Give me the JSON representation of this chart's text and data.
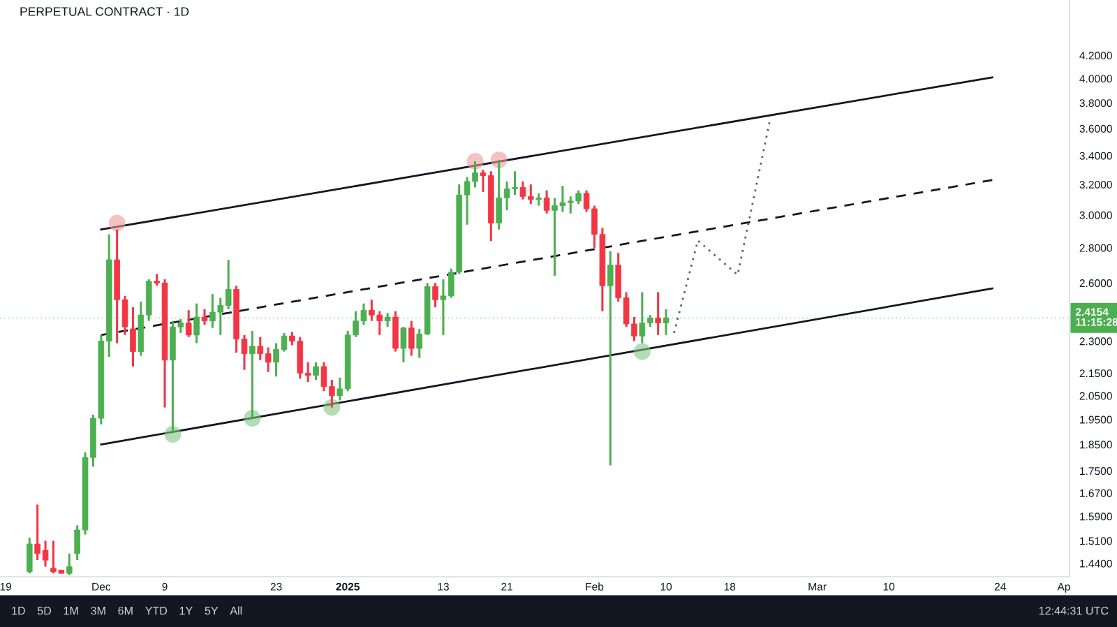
{
  "chart_data": {
    "type": "candlestick",
    "title": "PERPETUAL CONTRACT · 1D",
    "log": true,
    "x": [
      "2024-11-22",
      "2024-11-23",
      "2024-11-24",
      "2024-11-25",
      "2024-11-26",
      "2024-11-27",
      "2024-11-28",
      "2024-11-29",
      "2024-11-30",
      "2024-12-01",
      "2024-12-02",
      "2024-12-03",
      "2024-12-04",
      "2024-12-05",
      "2024-12-06",
      "2024-12-07",
      "2024-12-08",
      "2024-12-09",
      "2024-12-10",
      "2024-12-11",
      "2024-12-12",
      "2024-12-13",
      "2024-12-14",
      "2024-12-15",
      "2024-12-16",
      "2024-12-17",
      "2024-12-18",
      "2024-12-19",
      "2024-12-20",
      "2024-12-21",
      "2024-12-22",
      "2024-12-23",
      "2024-12-24",
      "2024-12-25",
      "2024-12-26",
      "2024-12-27",
      "2024-12-28",
      "2024-12-29",
      "2024-12-30",
      "2024-12-31",
      "2025-01-01",
      "2025-01-02",
      "2025-01-03",
      "2025-01-04",
      "2025-01-05",
      "2025-01-06",
      "2025-01-07",
      "2025-01-08",
      "2025-01-09",
      "2025-01-10",
      "2025-01-11",
      "2025-01-12",
      "2025-01-13",
      "2025-01-14",
      "2025-01-15",
      "2025-01-16",
      "2025-01-17",
      "2025-01-18",
      "2025-01-19",
      "2025-01-20",
      "2025-01-21",
      "2025-01-22",
      "2025-01-23",
      "2025-01-24",
      "2025-01-25",
      "2025-01-26",
      "2025-01-27",
      "2025-01-28",
      "2025-01-29",
      "2025-01-30",
      "2025-01-31",
      "2025-02-01",
      "2025-02-02",
      "2025-02-03",
      "2025-02-04",
      "2025-02-05",
      "2025-02-06",
      "2025-02-07",
      "2025-02-08",
      "2025-02-09",
      "2025-02-10"
    ],
    "ohlc": [
      [
        1.415,
        1.52,
        1.41,
        1.5
      ],
      [
        1.5,
        1.63,
        1.45,
        1.47
      ],
      [
        1.48,
        1.51,
        1.43,
        1.45
      ],
      [
        1.425,
        1.51,
        1.41,
        1.415
      ],
      [
        1.42,
        1.42,
        1.41,
        1.41
      ],
      [
        1.41,
        1.47,
        1.405,
        1.43
      ],
      [
        1.47,
        1.56,
        1.45,
        1.545
      ],
      [
        1.545,
        1.82,
        1.53,
        1.8
      ],
      [
        1.8,
        1.97,
        1.765,
        1.955
      ],
      [
        1.955,
        2.33,
        1.93,
        2.3
      ],
      [
        2.3,
        2.88,
        2.225,
        2.73
      ],
      [
        2.73,
        2.91,
        2.29,
        2.51
      ],
      [
        2.51,
        2.53,
        2.33,
        2.37
      ],
      [
        2.36,
        2.47,
        2.18,
        2.25
      ],
      [
        2.25,
        2.5,
        2.23,
        2.43
      ],
      [
        2.43,
        2.62,
        2.4,
        2.61
      ],
      [
        2.61,
        2.65,
        2.585,
        2.6
      ],
      [
        2.6,
        2.62,
        2.0,
        2.21
      ],
      [
        2.21,
        2.4,
        1.9,
        2.37
      ],
      [
        2.37,
        2.41,
        2.34,
        2.39
      ],
      [
        2.39,
        2.455,
        2.32,
        2.33
      ],
      [
        2.33,
        2.49,
        2.29,
        2.42
      ],
      [
        2.42,
        2.46,
        2.38,
        2.4
      ],
      [
        2.4,
        2.54,
        2.365,
        2.445
      ],
      [
        2.445,
        2.52,
        2.33,
        2.48
      ],
      [
        2.48,
        2.73,
        2.46,
        2.565
      ],
      [
        2.565,
        2.585,
        2.245,
        2.31
      ],
      [
        2.31,
        2.33,
        2.165,
        2.24
      ],
      [
        2.24,
        2.35,
        1.955,
        2.275
      ],
      [
        2.275,
        2.32,
        2.21,
        2.24
      ],
      [
        2.24,
        2.27,
        2.155,
        2.2
      ],
      [
        2.2,
        2.29,
        2.135,
        2.26
      ],
      [
        2.26,
        2.34,
        2.25,
        2.325
      ],
      [
        2.325,
        2.345,
        2.28,
        2.3
      ],
      [
        2.3,
        2.32,
        2.125,
        2.15
      ],
      [
        2.15,
        2.2,
        2.11,
        2.14
      ],
      [
        2.14,
        2.2,
        2.12,
        2.18
      ],
      [
        2.18,
        2.2,
        2.07,
        2.09
      ],
      [
        2.09,
        2.12,
        2.0,
        2.05
      ],
      [
        2.05,
        2.13,
        2.03,
        2.08
      ],
      [
        2.08,
        2.35,
        2.07,
        2.33
      ],
      [
        2.33,
        2.45,
        2.32,
        2.4
      ],
      [
        2.4,
        2.49,
        2.38,
        2.455
      ],
      [
        2.455,
        2.51,
        2.4,
        2.43
      ],
      [
        2.43,
        2.45,
        2.33,
        2.4
      ],
      [
        2.4,
        2.44,
        2.37,
        2.42
      ],
      [
        2.42,
        2.45,
        2.25,
        2.265
      ],
      [
        2.265,
        2.37,
        2.2,
        2.365
      ],
      [
        2.365,
        2.4,
        2.23,
        2.265
      ],
      [
        2.265,
        2.36,
        2.22,
        2.335
      ],
      [
        2.335,
        2.6,
        2.33,
        2.58
      ],
      [
        2.58,
        2.6,
        2.47,
        2.51
      ],
      [
        2.51,
        2.62,
        2.33,
        2.53
      ],
      [
        2.53,
        2.68,
        2.52,
        2.66
      ],
      [
        2.66,
        3.2,
        2.65,
        3.13
      ],
      [
        3.13,
        3.25,
        2.94,
        3.22
      ],
      [
        3.22,
        3.36,
        3.18,
        3.28
      ],
      [
        3.28,
        3.3,
        3.15,
        3.26
      ],
      [
        3.26,
        3.29,
        2.84,
        2.95
      ],
      [
        2.95,
        3.37,
        2.91,
        3.11
      ],
      [
        3.11,
        3.22,
        3.03,
        3.17
      ],
      [
        3.17,
        3.29,
        3.13,
        3.18
      ],
      [
        3.18,
        3.22,
        3.1,
        3.12
      ],
      [
        3.12,
        3.2,
        3.07,
        3.1
      ],
      [
        3.1,
        3.14,
        3.06,
        3.11
      ],
      [
        3.11,
        3.16,
        3.01,
        3.03
      ],
      [
        3.03,
        3.11,
        2.64,
        3.06
      ],
      [
        3.06,
        3.19,
        3.02,
        3.08
      ],
      [
        3.08,
        3.12,
        3.01,
        3.09
      ],
      [
        3.09,
        3.16,
        3.07,
        3.14
      ],
      [
        3.14,
        3.16,
        3.02,
        3.04
      ],
      [
        3.04,
        3.06,
        2.8,
        2.88
      ],
      [
        2.88,
        2.92,
        2.45,
        2.585
      ],
      [
        2.585,
        2.78,
        1.77,
        2.7
      ],
      [
        2.7,
        2.77,
        2.5,
        2.52
      ],
      [
        2.52,
        2.55,
        2.37,
        2.385
      ],
      [
        2.385,
        2.42,
        2.3,
        2.325
      ],
      [
        2.325,
        2.55,
        2.29,
        2.39
      ],
      [
        2.39,
        2.43,
        2.37,
        2.415
      ],
      [
        2.415,
        2.55,
        2.33,
        2.39
      ],
      [
        2.39,
        2.46,
        2.33,
        2.4154
      ]
    ],
    "colors": [
      "#4caf50",
      "#f23645",
      "#f23645",
      "#f23645",
      "#f23645",
      "#4caf50",
      "#4caf50",
      "#4caf50",
      "#4caf50",
      "#4caf50",
      "#4caf50",
      "#f23645",
      "#f23645",
      "#f23645",
      "#4caf50",
      "#4caf50",
      "#f23645",
      "#f23645",
      "#4caf50",
      "#4caf50",
      "#f23645",
      "#4caf50",
      "#f23645",
      "#4caf50",
      "#4caf50",
      "#4caf50",
      "#f23645",
      "#f23645",
      "#4caf50",
      "#f23645",
      "#f23645",
      "#4caf50",
      "#4caf50",
      "#f23645",
      "#f23645",
      "#f23645",
      "#4caf50",
      "#f23645",
      "#f23645",
      "#4caf50",
      "#4caf50",
      "#4caf50",
      "#4caf50",
      "#f23645",
      "#f23645",
      "#4caf50",
      "#f23645",
      "#4caf50",
      "#f23645",
      "#4caf50",
      "#4caf50",
      "#f23645",
      "#4caf50",
      "#4caf50",
      "#4caf50",
      "#4caf50",
      "#4caf50",
      "#f23645",
      "#f23645",
      "#4caf50",
      "#4caf50",
      "#4caf50",
      "#f23645",
      "#f23645",
      "#4caf50",
      "#f23645",
      "#4caf50",
      "#4caf50",
      "#4caf50",
      "#4caf50",
      "#f23645",
      "#f23645",
      "#f23645",
      "#4caf50",
      "#f23645",
      "#f23645",
      "#f23645",
      "#4caf50",
      "#4caf50",
      "#f23645",
      "#4caf50"
    ],
    "series": [
      {
        "type": "line",
        "color": "#131722",
        "line_style": "solid",
        "x": [
          "2024-12-01",
          "2025-03-23"
        ],
        "values": [
          2.91,
          4.01
        ]
      },
      {
        "type": "line",
        "color": "#131722",
        "line_style": "dashed",
        "x": [
          "2024-12-01",
          "2025-03-23"
        ],
        "values": [
          2.33,
          3.23
        ]
      },
      {
        "type": "line",
        "color": "#131722",
        "line_style": "solid",
        "x": [
          "2024-12-01",
          "2025-03-23"
        ],
        "values": [
          1.85,
          2.57
        ]
      },
      {
        "type": "line",
        "color": "#5d606b",
        "line_style": "dotted",
        "x": [
          "2025-02-11",
          "2025-02-14",
          "2025-02-19",
          "2025-02-23"
        ],
        "values": [
          2.34,
          2.843,
          2.645,
          3.647
        ]
      },
      {
        "type": "scatter",
        "color": "#ef9a9a",
        "marker": "circle",
        "x": [
          "2024-12-03",
          "2025-01-17",
          "2025-01-20"
        ],
        "values": [
          2.95,
          3.36,
          3.37
        ]
      },
      {
        "type": "scatter",
        "color": "#81c784",
        "marker": "circle",
        "x": [
          "2024-12-10",
          "2024-12-20",
          "2024-12-30",
          "2025-02-07"
        ],
        "values": [
          1.89,
          1.955,
          2.0,
          2.25
        ]
      }
    ],
    "ref_lines": [
      {
        "axis": "y",
        "value": 2.4154,
        "label": "2.4154\n11:15:28",
        "color": "#4caf50",
        "line_style": "dotted"
      }
    ],
    "xlim": [
      "2024-11-18T07:00",
      "2025-04-01T17:00"
    ],
    "xticks": [
      {
        "value": "2024-11-19",
        "label": "19"
      },
      {
        "value": "2024-12-01",
        "label": "Dec"
      },
      {
        "value": "2024-12-09",
        "label": "9"
      },
      {
        "value": "2024-12-23",
        "label": "23"
      },
      {
        "value": "2025-01-01",
        "label": "2025"
      },
      {
        "value": "2025-01-13",
        "label": "13"
      },
      {
        "value": "2025-01-21",
        "label": "21"
      },
      {
        "value": "2025-02-01",
        "label": "Feb"
      },
      {
        "value": "2025-02-10",
        "label": "10"
      },
      {
        "value": "2025-02-18",
        "label": "18"
      },
      {
        "value": "2025-03-01",
        "label": "Mar"
      },
      {
        "value": "2025-03-10",
        "label": "10"
      },
      {
        "value": "2025-03-24",
        "label": "24"
      },
      {
        "value": "2025-04-01",
        "label": "Ap"
      }
    ],
    "ylim": [
      1.4,
      4.72
    ],
    "yticks": [
      {
        "value": 4.2,
        "label": "4.2000"
      },
      {
        "value": 4.0,
        "label": "4.0000"
      },
      {
        "value": 3.8,
        "label": "3.8000"
      },
      {
        "value": 3.6,
        "label": "3.6000"
      },
      {
        "value": 3.4,
        "label": "3.4000"
      },
      {
        "value": 3.2,
        "label": "3.2000"
      },
      {
        "value": 3.0,
        "label": "3.0000"
      },
      {
        "value": 2.8,
        "label": "2.8000"
      },
      {
        "value": 2.6,
        "label": "2.6000"
      },
      {
        "value": 2.3,
        "label": "2.3000"
      },
      {
        "value": 2.15,
        "label": "2.1500"
      },
      {
        "value": 2.05,
        "label": "2.0500"
      },
      {
        "value": 1.95,
        "label": "1.9500"
      },
      {
        "value": 1.85,
        "label": "1.8500"
      },
      {
        "value": 1.75,
        "label": "1.7500"
      },
      {
        "value": 1.67,
        "label": "1.6700"
      },
      {
        "value": 1.59,
        "label": "1.5900"
      },
      {
        "value": 1.51,
        "label": "1.5100"
      },
      {
        "value": 1.44,
        "label": "1.4400"
      }
    ],
    "annotations": [
      "1D",
      "5D",
      "1M",
      "3M",
      "6M",
      "YTD",
      "1Y",
      "5Y",
      "All",
      "12:44:31 UTC"
    ]
  }
}
